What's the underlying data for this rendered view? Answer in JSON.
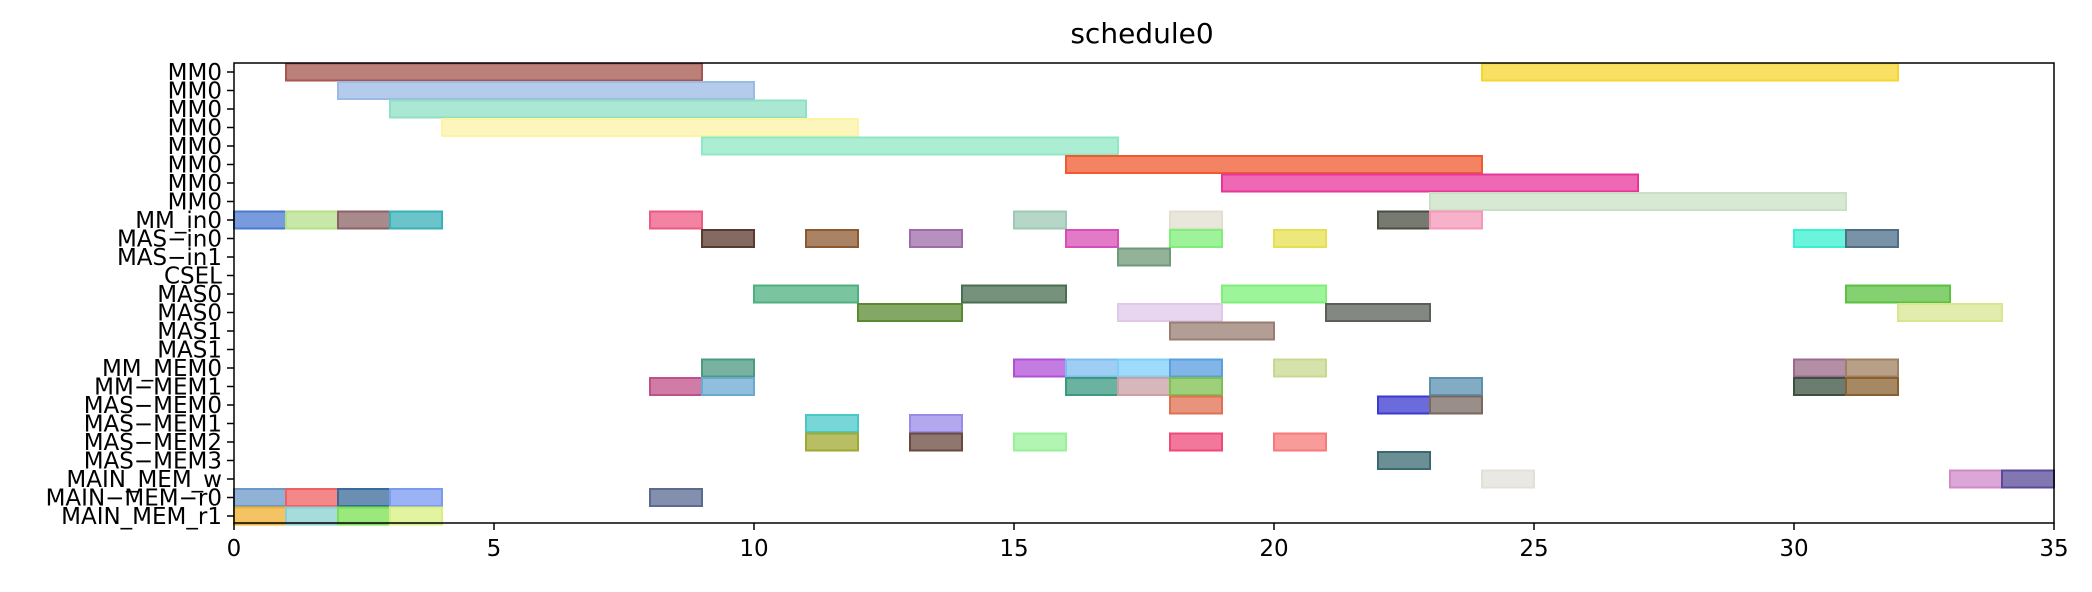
{
  "chart_data": {
    "type": "gantt",
    "title": "schedule0",
    "xlim": [
      0,
      35
    ],
    "x_ticks": [
      0,
      5,
      10,
      15,
      20,
      25,
      30,
      35
    ],
    "grid": false,
    "rows": [
      "MM0",
      "MM0",
      "MM0",
      "MM0",
      "MM0",
      "MM0",
      "MM0",
      "MM0",
      "MM_in0",
      "MAS−in0",
      "MAS−in1",
      "CSEL",
      "MAS0",
      "MAS0",
      "MAS1",
      "MAS1",
      "MM_MEM0",
      "MM−MEM1",
      "MAS−MEM0",
      "MAS−MEM1",
      "MAS−MEM2",
      "MAS−MEM3",
      "MAIN_MEM_w",
      "MAIN−MEM−r0",
      "MAIN_MEM_r1"
    ],
    "tasks": [
      {
        "row": 0,
        "start": 1,
        "end": 9,
        "color": "#a5564e"
      },
      {
        "row": 0,
        "start": 24,
        "end": 32,
        "color": "#f5d630"
      },
      {
        "row": 1,
        "start": 2,
        "end": 10,
        "color": "#9bbae6"
      },
      {
        "row": 2,
        "start": 3,
        "end": 11,
        "color": "#8fe0c4"
      },
      {
        "row": 3,
        "start": 4,
        "end": 12,
        "color": "#fcf3a5"
      },
      {
        "row": 4,
        "start": 9,
        "end": 17,
        "color": "#8fe8c4"
      },
      {
        "row": 5,
        "start": 16,
        "end": 24,
        "color": "#f05a30"
      },
      {
        "row": 6,
        "start": 19,
        "end": 27,
        "color": "#e8359a"
      },
      {
        "row": 7,
        "start": 23,
        "end": 31,
        "color": "#c9e0c4"
      },
      {
        "row": 8,
        "start": 0,
        "end": 1,
        "color": "#4a7ad0"
      },
      {
        "row": 8,
        "start": 1,
        "end": 2,
        "color": "#b6e08a"
      },
      {
        "row": 8,
        "start": 2,
        "end": 3,
        "color": "#8b6166"
      },
      {
        "row": 8,
        "start": 3,
        "end": 4,
        "color": "#3ab0b8"
      },
      {
        "row": 8,
        "start": 8,
        "end": 9,
        "color": "#ee5a84"
      },
      {
        "row": 8,
        "start": 15,
        "end": 16,
        "color": "#9ec9b6"
      },
      {
        "row": 8,
        "start": 18,
        "end": 19,
        "color": "#e2ded0"
      },
      {
        "row": 8,
        "start": 22,
        "end": 23,
        "color": "#4a4e40"
      },
      {
        "row": 8,
        "start": 23,
        "end": 24,
        "color": "#f597b8"
      },
      {
        "row": 9,
        "start": 9,
        "end": 10,
        "color": "#5a3a30"
      },
      {
        "row": 9,
        "start": 11,
        "end": 12,
        "color": "#8c5a30"
      },
      {
        "row": 9,
        "start": 13,
        "end": 14,
        "color": "#9e6ba8"
      },
      {
        "row": 9,
        "start": 16,
        "end": 17,
        "color": "#d94eb6"
      },
      {
        "row": 9,
        "start": 18,
        "end": 19,
        "color": "#7eef78"
      },
      {
        "row": 9,
        "start": 20,
        "end": 21,
        "color": "#e6e050"
      },
      {
        "row": 9,
        "start": 30,
        "end": 31,
        "color": "#3af0d0"
      },
      {
        "row": 9,
        "start": 31,
        "end": 32,
        "color": "#4e6e88"
      },
      {
        "row": 10,
        "start": 17,
        "end": 18,
        "color": "#6e9a78"
      },
      {
        "row": 12,
        "start": 10,
        "end": 12,
        "color": "#4eb080"
      },
      {
        "row": 12,
        "start": 14,
        "end": 16,
        "color": "#4a6e50"
      },
      {
        "row": 12,
        "start": 19,
        "end": 21,
        "color": "#7ef07a"
      },
      {
        "row": 12,
        "start": 31,
        "end": 33,
        "color": "#5cc040"
      },
      {
        "row": 13,
        "start": 12,
        "end": 14,
        "color": "#5a8a30"
      },
      {
        "row": 13,
        "start": 17,
        "end": 19,
        "color": "#e0c8e8"
      },
      {
        "row": 13,
        "start": 21,
        "end": 23,
        "color": "#5a6058"
      },
      {
        "row": 13,
        "start": 32,
        "end": 34,
        "color": "#d8e690"
      },
      {
        "row": 14,
        "start": 18,
        "end": 20,
        "color": "#9a7e72"
      },
      {
        "row": 16,
        "start": 9,
        "end": 10,
        "color": "#4a9a80"
      },
      {
        "row": 16,
        "start": 15,
        "end": 16,
        "color": "#b050d8"
      },
      {
        "row": 16,
        "start": 16,
        "end": 17,
        "color": "#7ebeef"
      },
      {
        "row": 16,
        "start": 17,
        "end": 18,
        "color": "#7ecef8"
      },
      {
        "row": 16,
        "start": 18,
        "end": 19,
        "color": "#5a9ee0"
      },
      {
        "row": 16,
        "start": 20,
        "end": 21,
        "color": "#c8d890"
      },
      {
        "row": 16,
        "start": 30,
        "end": 31,
        "color": "#9a6a88"
      },
      {
        "row": 16,
        "start": 31,
        "end": 32,
        "color": "#a08060"
      },
      {
        "row": 17,
        "start": 8,
        "end": 9,
        "color": "#c05088"
      },
      {
        "row": 17,
        "start": 9,
        "end": 10,
        "color": "#6aaad0"
      },
      {
        "row": 17,
        "start": 16,
        "end": 17,
        "color": "#3a9a80"
      },
      {
        "row": 17,
        "start": 17,
        "end": 18,
        "color": "#c8a0a6"
      },
      {
        "row": 17,
        "start": 18,
        "end": 19,
        "color": "#7ec050"
      },
      {
        "row": 17,
        "start": 23,
        "end": 24,
        "color": "#5a90b0"
      },
      {
        "row": 17,
        "start": 30,
        "end": 31,
        "color": "#3a5040"
      },
      {
        "row": 17,
        "start": 31,
        "end": 32,
        "color": "#8a6030"
      },
      {
        "row": 18,
        "start": 18,
        "end": 19,
        "color": "#e07050"
      },
      {
        "row": 18,
        "start": 22,
        "end": 23,
        "color": "#3a3ad0"
      },
      {
        "row": 18,
        "start": 23,
        "end": 24,
        "color": "#786860"
      },
      {
        "row": 19,
        "start": 11,
        "end": 12,
        "color": "#4ac8c8"
      },
      {
        "row": 19,
        "start": 13,
        "end": 14,
        "color": "#9a8ae8"
      },
      {
        "row": 19,
        "start": 11,
        "end": 12,
        "color": "#a0a830",
        "sub": 1
      },
      {
        "row": 19,
        "start": 13,
        "end": 14,
        "color": "#6a4a40",
        "sub": 1
      },
      {
        "row": 19,
        "start": 15,
        "end": 16,
        "color": "#98f098",
        "sub": 1
      },
      {
        "row": 19,
        "start": 18,
        "end": 19,
        "color": "#ee4a78",
        "sub": 1
      },
      {
        "row": 19,
        "start": 20,
        "end": 21,
        "color": "#f87a7a",
        "sub": 1
      },
      {
        "row": 21,
        "start": 22,
        "end": 23,
        "color": "#3a6a70"
      },
      {
        "row": 22,
        "start": 24,
        "end": 25,
        "color": "#e2e0d8"
      },
      {
        "row": 22,
        "start": 33,
        "end": 34,
        "color": "#d08ac8"
      },
      {
        "row": 22,
        "start": 34,
        "end": 35,
        "color": "#5a4a98"
      },
      {
        "row": 23,
        "start": 0,
        "end": 1,
        "color": "#6a98c8"
      },
      {
        "row": 23,
        "start": 1,
        "end": 2,
        "color": "#f06060"
      },
      {
        "row": 23,
        "start": 2,
        "end": 3,
        "color": "#3a6a98"
      },
      {
        "row": 23,
        "start": 3,
        "end": 4,
        "color": "#7a9af0"
      },
      {
        "row": 23,
        "start": 8,
        "end": 9,
        "color": "#5a6a90"
      },
      {
        "row": 24,
        "start": 0,
        "end": 1,
        "color": "#f0b030"
      },
      {
        "row": 24,
        "start": 1,
        "end": 2,
        "color": "#8ad0d0"
      },
      {
        "row": 24,
        "start": 2,
        "end": 3,
        "color": "#7ae050"
      },
      {
        "row": 24,
        "start": 3,
        "end": 4,
        "color": "#d8f080"
      }
    ]
  }
}
